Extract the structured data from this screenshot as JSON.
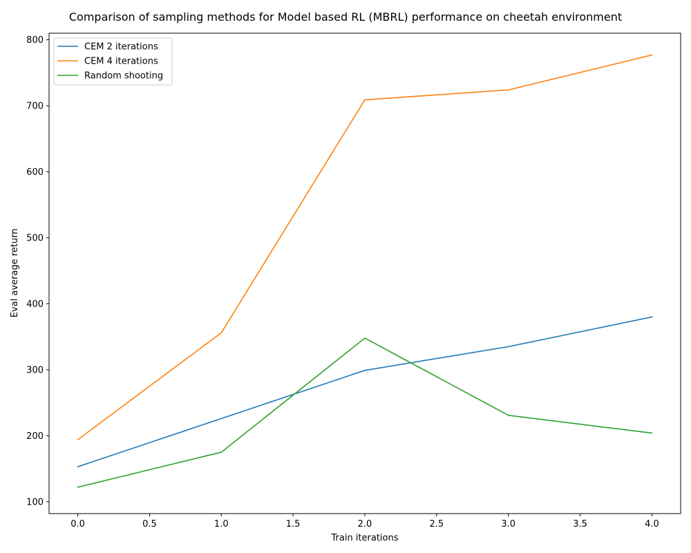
{
  "chart_data": {
    "type": "line",
    "title": "Comparison of sampling methods for Model based RL (MBRL) performance on cheetah environment",
    "xlabel": "Train iterations",
    "ylabel": "Eval average return",
    "x": [
      0,
      1,
      2,
      3,
      4
    ],
    "xlim": [
      -0.2,
      4.2
    ],
    "ylim": [
      82,
      810
    ],
    "xticks": [
      0.0,
      0.5,
      1.0,
      1.5,
      2.0,
      2.5,
      3.0,
      3.5,
      4.0
    ],
    "xtick_labels": [
      "0.0",
      "0.5",
      "1.0",
      "1.5",
      "2.0",
      "2.5",
      "3.0",
      "3.5",
      "4.0"
    ],
    "yticks": [
      100,
      200,
      300,
      400,
      500,
      600,
      700,
      800
    ],
    "ytick_labels": [
      "100",
      "200",
      "300",
      "400",
      "500",
      "600",
      "700",
      "800"
    ],
    "grid": false,
    "legend_position": "top-left",
    "series": [
      {
        "name": "CEM 2 iterations",
        "color": "#1f77b4",
        "values": [
          153,
          226,
          299,
          335,
          380
        ]
      },
      {
        "name": "CEM 4 iterations",
        "color": "#ff7f0e",
        "values": [
          194,
          356,
          709,
          724,
          777
        ]
      },
      {
        "name": "Random shooting",
        "color": "#2ca02c",
        "values": [
          122,
          175,
          348,
          231,
          204
        ]
      }
    ]
  }
}
